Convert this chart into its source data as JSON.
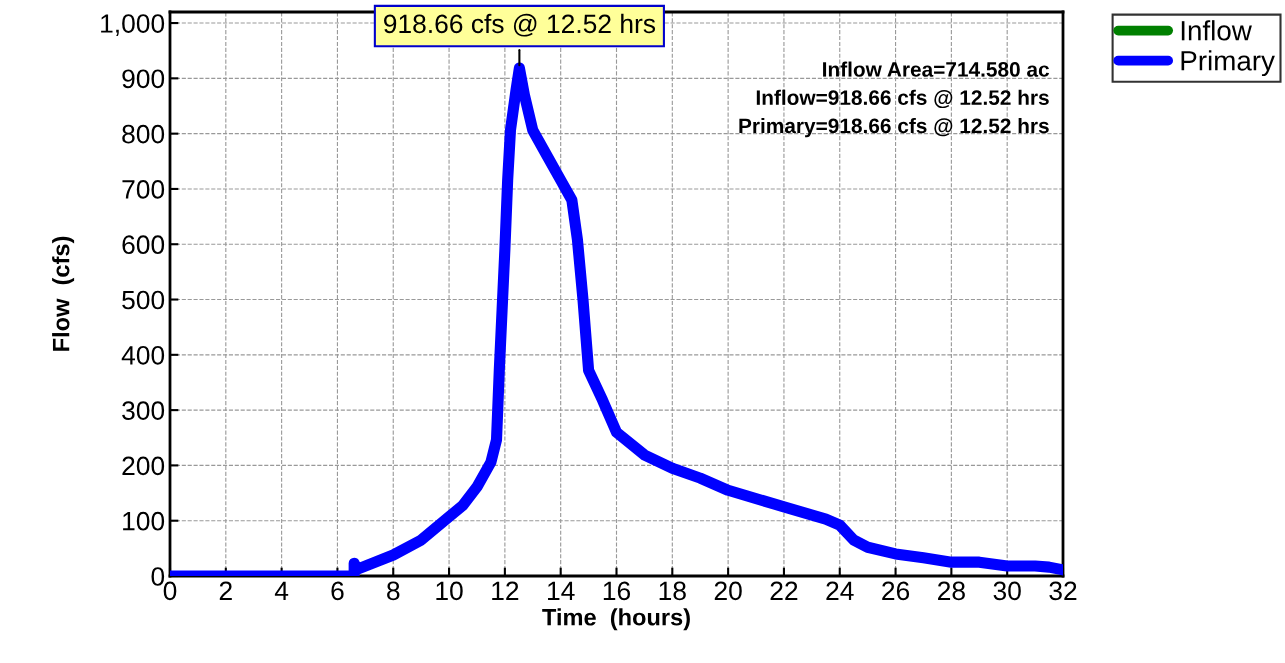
{
  "chart_data": {
    "type": "line",
    "xlabel": "Time  (hours)",
    "ylabel": "Flow  (cfs)",
    "xlim": [
      0,
      32
    ],
    "ylim": [
      0,
      1020
    ],
    "xticks": [
      0,
      2,
      4,
      6,
      8,
      10,
      12,
      14,
      16,
      18,
      20,
      22,
      24,
      26,
      28,
      30,
      32
    ],
    "yticks": [
      0,
      100,
      200,
      300,
      400,
      500,
      600,
      700,
      800,
      900,
      {
        "value": 1000,
        "label": "1,000"
      }
    ],
    "grid": true,
    "legend": "top right",
    "line_style": "solid",
    "marker": "none",
    "series": [
      {
        "name": "Inflow",
        "color": "#008000"
      },
      {
        "name": "Primary",
        "color": "#0000ff",
        "x": [
          0,
          6.6,
          6.6,
          6.7,
          8,
          9,
          10,
          10.5,
          11,
          11.5,
          11.7,
          11.8,
          11.9,
          12.0,
          12.1,
          12.2,
          12.4,
          12.52,
          12.7,
          13,
          13.5,
          14,
          14.4,
          14.6,
          14.8,
          15,
          15.5,
          16,
          17,
          18,
          19,
          20,
          22,
          23.5,
          24,
          24.5,
          25,
          26,
          27,
          28,
          29,
          30,
          31,
          31.5,
          32
        ],
        "values": [
          0,
          0,
          23,
          12,
          38,
          65,
          107,
          128,
          161,
          206,
          246,
          372,
          481,
          590,
          716,
          806,
          879,
          918.66,
          870,
          806,
          761,
          716,
          680,
          608,
          499,
          372,
          318,
          260,
          219,
          195,
          177,
          155,
          125,
          103,
          92,
          65,
          52,
          40,
          33,
          25,
          25,
          18,
          18,
          16,
          11
        ]
      }
    ],
    "annotations": [
      {
        "text": "918.66 cfs @ 12.52 hrs",
        "x": 12.52,
        "y": 918.66
      },
      "Inflow Area=714.580 ac",
      "Inflow=918.66 cfs @ 12.52 hrs",
      "Primary=918.66 cfs @ 12.52 hrs"
    ]
  }
}
